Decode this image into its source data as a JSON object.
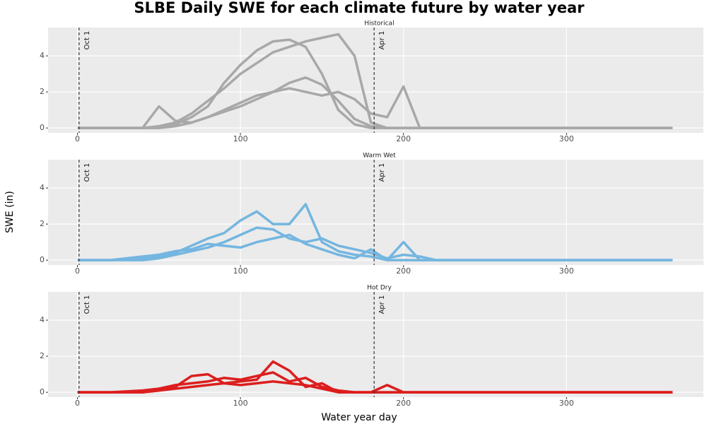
{
  "title": "SLBE Daily SWE for each climate future by water year",
  "x_label": "Water year day",
  "y_label": "SWE (in)",
  "chart_data": [
    {
      "type": "line",
      "title": "Historical",
      "color": "#a8a8a8",
      "grid": true,
      "xlim": [
        -18,
        384
      ],
      "xticks": [
        0,
        100,
        200,
        300
      ],
      "ylim": [
        -0.27,
        5.57
      ],
      "yticks": [
        0,
        2,
        4
      ],
      "annotations": [
        {
          "x": 1,
          "label": "Oct 1"
        },
        {
          "x": 182,
          "label": "Apr 1"
        }
      ],
      "x": [
        0,
        20,
        40,
        50,
        60,
        70,
        80,
        90,
        100,
        110,
        120,
        130,
        140,
        150,
        160,
        170,
        180,
        190,
        200,
        210,
        220,
        240,
        300,
        365
      ],
      "series": [
        {
          "values": [
            0,
            0,
            0,
            0.1,
            0.3,
            0.8,
            1.5,
            2.2,
            3.0,
            3.6,
            4.2,
            4.5,
            4.8,
            5.0,
            5.2,
            4.0,
            0.3,
            0,
            0,
            0,
            0,
            0,
            0,
            0
          ]
        },
        {
          "values": [
            0,
            0,
            0,
            0,
            0.2,
            0.6,
            1.2,
            2.5,
            3.5,
            4.3,
            4.8,
            4.9,
            4.5,
            3.0,
            1.0,
            0.2,
            0,
            0,
            0,
            0,
            0,
            0,
            0,
            0
          ]
        },
        {
          "values": [
            0,
            0,
            0,
            1.2,
            0.4,
            0.3,
            0.6,
            1.0,
            1.4,
            1.8,
            2.0,
            2.2,
            2.0,
            1.8,
            2.0,
            1.6,
            0.8,
            0.6,
            2.3,
            0,
            0,
            0,
            0,
            0
          ]
        },
        {
          "values": [
            0,
            0,
            0,
            0,
            0.1,
            0.3,
            0.6,
            0.9,
            1.2,
            1.6,
            2.0,
            2.5,
            2.8,
            2.4,
            1.5,
            0.5,
            0.1,
            0,
            0,
            0,
            0,
            0,
            0,
            0
          ]
        }
      ]
    },
    {
      "type": "line",
      "title": "Warm Wet",
      "color": "#74b6e0",
      "grid": true,
      "xlim": [
        -18,
        384
      ],
      "xticks": [
        0,
        100,
        200,
        300
      ],
      "ylim": [
        -0.27,
        5.57
      ],
      "yticks": [
        0,
        2,
        4
      ],
      "annotations": [
        {
          "x": 1,
          "label": "Oct 1"
        },
        {
          "x": 182,
          "label": "Apr 1"
        }
      ],
      "x": [
        0,
        20,
        40,
        50,
        60,
        70,
        80,
        90,
        100,
        110,
        120,
        130,
        140,
        150,
        160,
        170,
        180,
        190,
        200,
        210,
        220,
        240,
        300,
        365
      ],
      "series": [
        {
          "values": [
            0,
            0,
            0.1,
            0.2,
            0.4,
            0.8,
            1.2,
            1.5,
            2.2,
            2.7,
            2.0,
            2.0,
            3.1,
            1.0,
            0.5,
            0.3,
            0.2,
            0,
            0,
            0,
            0,
            0,
            0,
            0
          ]
        },
        {
          "values": [
            0,
            0,
            0,
            0.1,
            0.3,
            0.5,
            0.7,
            1.0,
            1.4,
            1.8,
            1.7,
            1.2,
            1.0,
            1.2,
            0.8,
            0.6,
            0.4,
            0.1,
            0.3,
            0.2,
            0,
            0,
            0,
            0
          ]
        },
        {
          "values": [
            0,
            0,
            0.2,
            0.3,
            0.5,
            0.6,
            0.9,
            0.8,
            0.7,
            1.0,
            1.2,
            1.4,
            0.9,
            0.6,
            0.3,
            0.1,
            0.6,
            0,
            1.0,
            0,
            0,
            0,
            0,
            0
          ]
        }
      ]
    },
    {
      "type": "line",
      "title": "Hot Dry",
      "color": "#dc1e1e",
      "grid": true,
      "xlim": [
        -18,
        384
      ],
      "xticks": [
        0,
        100,
        200,
        300
      ],
      "ylim": [
        -0.27,
        5.57
      ],
      "yticks": [
        0,
        2,
        4
      ],
      "annotations": [
        {
          "x": 1,
          "label": "Oct 1"
        },
        {
          "x": 182,
          "label": "Apr 1"
        }
      ],
      "x": [
        0,
        20,
        40,
        50,
        60,
        70,
        80,
        90,
        100,
        110,
        120,
        130,
        140,
        150,
        160,
        170,
        180,
        190,
        200,
        210,
        220,
        240,
        300,
        365
      ],
      "series": [
        {
          "values": [
            0,
            0,
            0,
            0.1,
            0.3,
            0.9,
            1.0,
            0.5,
            0.6,
            0.7,
            1.7,
            1.2,
            0.3,
            0.5,
            0,
            0,
            0,
            0,
            0,
            0,
            0,
            0,
            0,
            0
          ]
        },
        {
          "values": [
            0,
            0,
            0.1,
            0.2,
            0.4,
            0.5,
            0.6,
            0.8,
            0.7,
            0.9,
            1.1,
            0.6,
            0.8,
            0.3,
            0.1,
            0,
            0,
            0.4,
            0,
            0,
            0,
            0,
            0,
            0
          ]
        },
        {
          "values": [
            0,
            0,
            0,
            0.1,
            0.2,
            0.3,
            0.4,
            0.5,
            0.4,
            0.5,
            0.6,
            0.5,
            0.4,
            0.2,
            0,
            0,
            0,
            0,
            0,
            0,
            0,
            0,
            0,
            0
          ]
        }
      ]
    }
  ]
}
